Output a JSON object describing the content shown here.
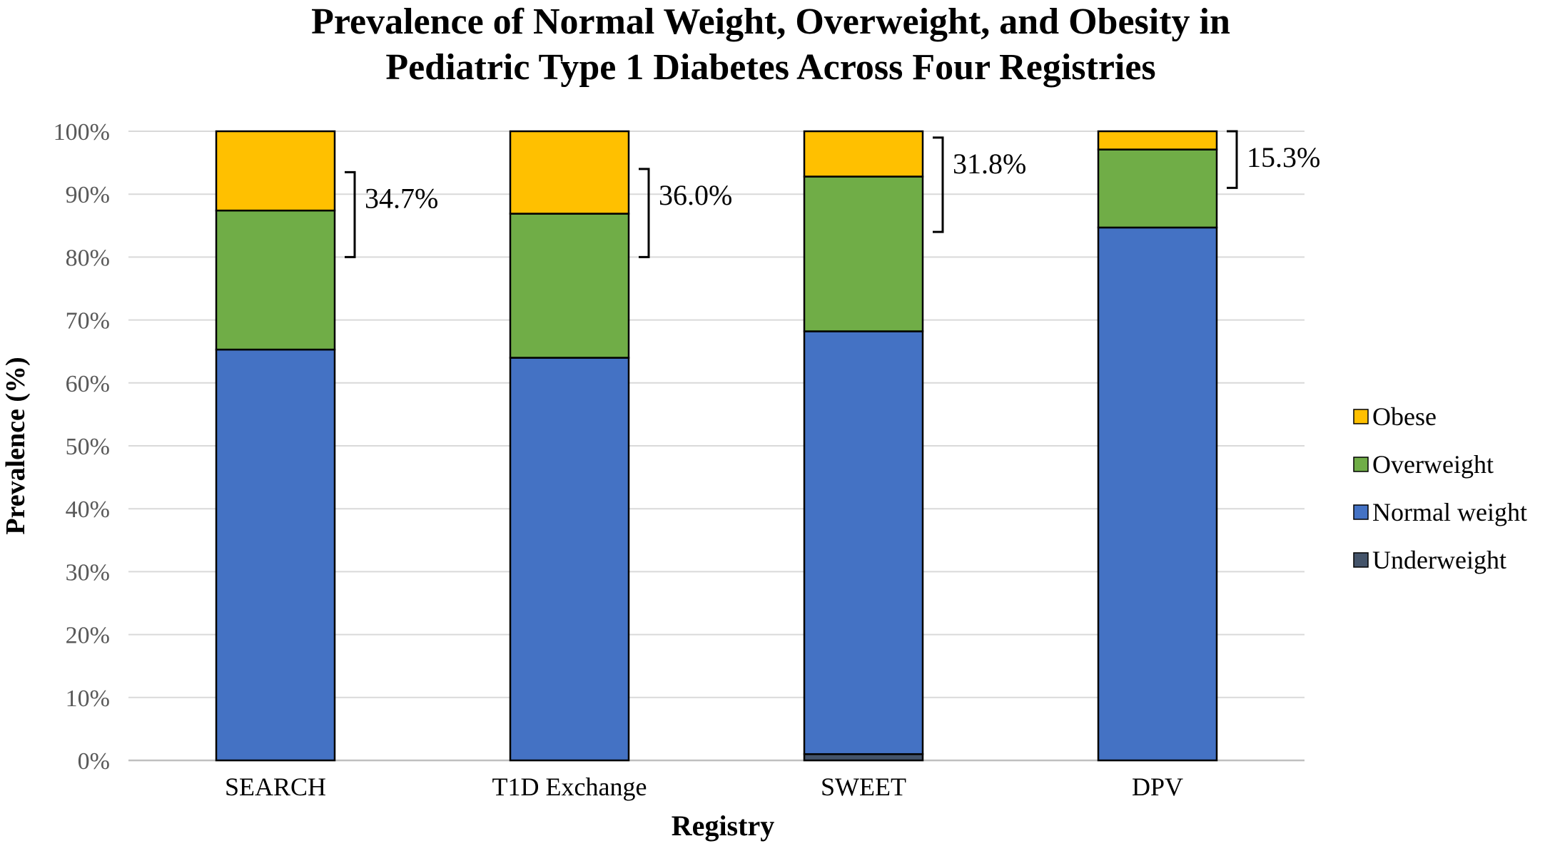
{
  "chart_data": {
    "type": "bar",
    "stacked": true,
    "title_lines": [
      "Prevalence of Normal Weight, Overweight, and Obesity in",
      "Pediatric Type 1 Diabetes Across Four Registries"
    ],
    "xlabel": "Registry",
    "ylabel": "Prevalence (%)",
    "ylim": [
      0,
      100
    ],
    "yticks": [
      0,
      10,
      20,
      30,
      40,
      50,
      60,
      70,
      80,
      90,
      100
    ],
    "ytick_labels": [
      "0%",
      "10%",
      "20%",
      "30%",
      "40%",
      "50%",
      "60%",
      "70%",
      "80%",
      "90%",
      "100%"
    ],
    "grid": true,
    "legend_position": "right",
    "categories": [
      "SEARCH",
      "T1D Exchange",
      "SWEET",
      "DPV"
    ],
    "series": [
      {
        "name": "Underweight",
        "color": "#44546A",
        "values": [
          0,
          0,
          1.0,
          0
        ]
      },
      {
        "name": "Normal weight",
        "color": "#4472C4",
        "values": [
          65.3,
          64.0,
          67.2,
          84.7
        ]
      },
      {
        "name": "Overweight",
        "color": "#70AD47",
        "values": [
          22.1,
          22.9,
          24.6,
          12.4
        ]
      },
      {
        "name": "Obese",
        "color": "#FFC000",
        "values": [
          12.6,
          13.1,
          7.2,
          2.9
        ]
      }
    ],
    "legend_order": [
      "Obese",
      "Overweight",
      "Normal weight",
      "Underweight"
    ],
    "annotations": [
      {
        "category": "SEARCH",
        "text": "34.7%",
        "from": 80,
        "to": 93.5
      },
      {
        "category": "T1D Exchange",
        "text": "36.0%",
        "from": 80,
        "to": 94
      },
      {
        "category": "SWEET",
        "text": "31.8%",
        "from": 84,
        "to": 99
      },
      {
        "category": "DPV",
        "text": "15.3%",
        "from": 91,
        "to": 100
      }
    ]
  }
}
